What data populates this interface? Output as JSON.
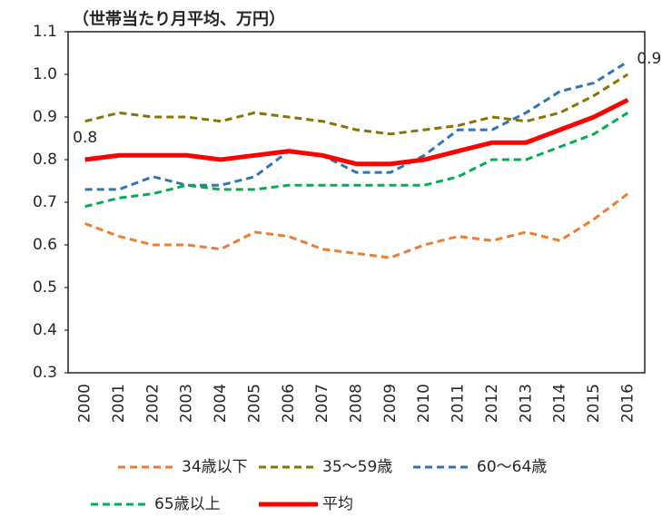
{
  "chart_data": {
    "type": "line",
    "title": "（世帯当たり月平均、万円）",
    "categories": [
      "2000",
      "2001",
      "2002",
      "2003",
      "2004",
      "2005",
      "2006",
      "2007",
      "2008",
      "2009",
      "2010",
      "2011",
      "2012",
      "2013",
      "2014",
      "2015",
      "2016"
    ],
    "ylim": [
      0.3,
      1.1
    ],
    "yticks": [
      0.3,
      0.4,
      0.5,
      0.6,
      0.7,
      0.8,
      0.9,
      {
        "value": 1,
        "label": "1.0"
      },
      1.1
    ],
    "grid": false,
    "series": [
      {
        "name": "34歳以下",
        "color": "#ED7D31",
        "dashed": true,
        "values": [
          0.65,
          0.62,
          0.6,
          0.6,
          0.59,
          0.63,
          0.62,
          0.59,
          0.58,
          0.57,
          0.6,
          0.62,
          0.61,
          0.63,
          0.61,
          0.66,
          0.72
        ]
      },
      {
        "name": "35〜59歳",
        "color": "#8B7300",
        "dashed": true,
        "values": [
          0.89,
          0.91,
          0.9,
          0.9,
          0.89,
          0.91,
          0.9,
          0.89,
          0.87,
          0.86,
          0.87,
          0.88,
          0.9,
          0.89,
          0.91,
          0.95,
          1.0
        ]
      },
      {
        "name": "60〜64歳",
        "color": "#2E75B6",
        "dashed": true,
        "values": [
          0.73,
          0.73,
          0.76,
          0.74,
          0.74,
          0.76,
          0.82,
          0.81,
          0.77,
          0.77,
          0.81,
          0.87,
          0.87,
          0.91,
          0.96,
          0.98,
          1.03
        ]
      },
      {
        "name": "65歳以上",
        "color": "#00B050",
        "dashed": true,
        "values": [
          0.69,
          0.71,
          0.72,
          0.74,
          0.73,
          0.73,
          0.74,
          0.74,
          0.74,
          0.74,
          0.74,
          0.76,
          0.8,
          0.8,
          0.83,
          0.86,
          0.91
        ]
      },
      {
        "name": "平均",
        "color": "#FF0000",
        "dashed": false,
        "values": [
          0.8,
          0.81,
          0.81,
          0.81,
          0.8,
          0.81,
          0.82,
          0.81,
          0.79,
          0.79,
          0.8,
          0.82,
          0.84,
          0.84,
          0.87,
          0.9,
          0.94
        ],
        "value_labels": [
          "0.8",
          null,
          null,
          null,
          null,
          null,
          null,
          null,
          null,
          null,
          null,
          null,
          null,
          null,
          null,
          null,
          "0.9"
        ]
      }
    ]
  }
}
